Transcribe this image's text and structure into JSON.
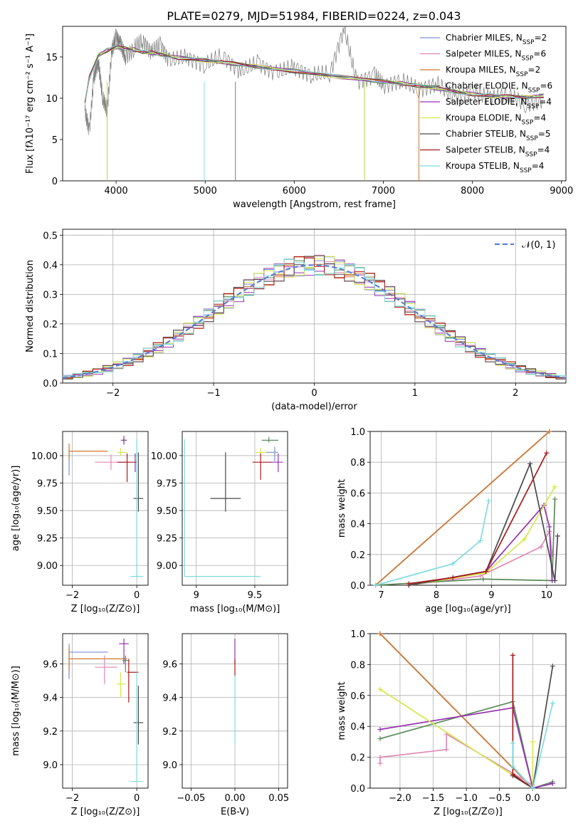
{
  "figure_title": "PLATE=0279, MJD=51984, FIBERID=0224, z=0.043",
  "series_colors": {
    "chabrier_miles": "#7b8fd6",
    "salpeter_miles": "#e089b4",
    "kroupa_miles": "#d2772b",
    "chabrier_elodie": "#5a8a5a",
    "salpeter_elodie": "#9632b0",
    "kroupa_elodie": "#d4e84a",
    "chabrier_stelib": "#4a4a4a",
    "salpeter_stelib": "#a81a1a",
    "kroupa_stelib": "#7fdbe0"
  },
  "chart_data": [
    {
      "id": "spectrum",
      "type": "line",
      "xlabel": "wavelength [Angstrom, rest frame]",
      "ylabel": "Flux [fλ10⁻¹⁷ erg cm⁻² s⁻¹ A⁻¹]",
      "xlim": [
        3400,
        9050
      ],
      "ylim": [
        0,
        18.7
      ],
      "xticks": [
        4000,
        5000,
        6000,
        7000,
        8000,
        9000
      ],
      "yticks": [
        0,
        5,
        10,
        15
      ],
      "legend_loc": "upper right",
      "legend": [
        "Chabrier MILES, N_SSP=2",
        "Salpeter MILES, N_SSP=6",
        "Kroupa MILES, N_SSP=2",
        "Chabrier ELODIE, N_SSP=6",
        "Salpeter ELODIE, N_SSP=4",
        "Kroupa ELODIE, N_SSP=4",
        "Chabrier STELIB, N_SSP=5",
        "Salpeter STELIB, N_SSP=4",
        "Kroupa STELIB, N_SSP=4"
      ],
      "model_curve": {
        "x": [
          3650,
          3700,
          3800,
          3900,
          4000,
          4100,
          4200,
          4300,
          4400,
          4500,
          4700,
          5000,
          5300,
          5600,
          6000,
          6500,
          7000,
          7200,
          7400,
          7600,
          7800,
          8000,
          8200,
          8400,
          8600,
          8800
        ],
        "y": [
          9.5,
          12.5,
          15.2,
          15.8,
          16.2,
          16.0,
          15.9,
          15.6,
          15.5,
          15.3,
          14.9,
          14.6,
          14.2,
          13.8,
          13.3,
          12.6,
          12.0,
          11.8,
          11.5,
          11.2,
          10.8,
          10.5,
          10.3,
          10.2,
          10.1,
          10.3
        ]
      },
      "data_curve_gray": {
        "x": [
          3650,
          3700,
          3750,
          3800,
          3850,
          3900,
          3950,
          4000,
          4050,
          4100,
          4200,
          4300,
          4400,
          4500,
          4600,
          4800,
          5000,
          5200,
          5400,
          5600,
          5800,
          6000,
          6200,
          6400,
          6560,
          6700,
          6900,
          7000,
          7200,
          7400,
          7600,
          7800,
          8000,
          8200,
          8400,
          8600,
          8800
        ],
        "y": [
          8.5,
          6.0,
          12.5,
          14.5,
          10.0,
          8.5,
          15.5,
          17.5,
          16.5,
          15.0,
          16.0,
          17.0,
          15.5,
          16.5,
          14.5,
          15.0,
          14.0,
          15.2,
          13.2,
          14.3,
          13.0,
          13.8,
          12.8,
          13.0,
          18.5,
          12.0,
          12.8,
          11.5,
          12.2,
          11.0,
          11.8,
          10.0,
          10.8,
          10.0,
          10.5,
          9.2,
          9.8
        ]
      },
      "drop_lines": [
        3900,
        4990,
        5340,
        6790,
        7400
      ]
    },
    {
      "id": "residuals",
      "type": "histogram",
      "xlabel": "(data-model)/error",
      "ylabel": "Normed distribution",
      "xlim": [
        -2.5,
        2.5
      ],
      "ylim": [
        0,
        0.52
      ],
      "xticks": [
        -2,
        -1,
        0,
        1,
        2
      ],
      "yticks": [
        0.0,
        0.1,
        0.2,
        0.3,
        0.4,
        0.5
      ],
      "legend": [
        "𝒩(0, 1)"
      ],
      "legend_loc": "upper right",
      "bin_width": 0.1,
      "reference_gaussian": {
        "mean": 0,
        "sigma": 1
      }
    },
    {
      "id": "age_vs_z",
      "type": "scatter",
      "xlabel": "Z [log₁₀(Z/Z⊙)]",
      "ylabel": "age  [log₁₀(age/yr)]",
      "xlim": [
        -2.3,
        0.35
      ],
      "ylim": [
        8.82,
        10.22
      ],
      "xticks": [
        -2,
        0
      ],
      "yticks": [
        9.0,
        9.25,
        9.5,
        9.75,
        10.0
      ],
      "points": [
        {
          "s": "chabrier_miles",
          "x": -2.1,
          "y": 9.94,
          "xlo": -2.1,
          "xhi": -2.1,
          "ylo": 9.82,
          "yhi": 10.06
        },
        {
          "s": "kroupa_miles",
          "x": -2.1,
          "y": 10.04,
          "xlo": -2.1,
          "xhi": -0.9,
          "ylo": 9.97,
          "yhi": 10.11
        },
        {
          "s": "salpeter_miles",
          "x": -0.8,
          "y": 9.94,
          "xlo": -1.3,
          "xhi": -0.3,
          "ylo": 9.87,
          "yhi": 10.01
        },
        {
          "s": "kroupa_elodie",
          "x": -0.5,
          "y": 10.03,
          "xlo": -0.6,
          "xhi": -0.3,
          "ylo": 10.0,
          "yhi": 10.07
        },
        {
          "s": "chabrier_elodie",
          "x": -0.4,
          "y": 10.14,
          "xlo": -0.5,
          "xhi": -0.3,
          "ylo": 10.12,
          "yhi": 10.17
        },
        {
          "s": "salpeter_elodie",
          "x": -0.4,
          "y": 10.14,
          "xlo": -0.45,
          "xhi": -0.35,
          "ylo": 10.1,
          "yhi": 10.18
        },
        {
          "s": "salpeter_stelib",
          "x": -0.3,
          "y": 9.94,
          "xlo": -0.6,
          "xhi": -0.0,
          "ylo": 9.76,
          "yhi": 10.02
        },
        {
          "s": "salpeter_elodie",
          "x": -0.05,
          "y": 9.94,
          "xlo": -0.05,
          "xhi": -0.05,
          "ylo": 9.85,
          "yhi": 10.02
        },
        {
          "s": "chabrier_stelib",
          "x": 0.05,
          "y": 9.61,
          "xlo": -0.1,
          "xhi": 0.2,
          "ylo": 9.49,
          "yhi": 10.03
        },
        {
          "s": "kroupa_stelib",
          "x": 0.0,
          "y": 8.9,
          "xlo": -0.2,
          "xhi": 0.2,
          "ylo": 8.9,
          "yhi": 10.15
        }
      ]
    },
    {
      "id": "age_vs_mass",
      "type": "scatter",
      "xlabel": "mass [log₁₀(M/M⊙)]",
      "ylabel": "",
      "xlim": [
        8.88,
        9.78
      ],
      "ylim": [
        8.82,
        10.22
      ],
      "xticks": [
        9.0,
        9.5
      ],
      "yticks": [
        9.0,
        9.25,
        9.5,
        9.75,
        10.0
      ],
      "points": [
        {
          "s": "kroupa_stelib",
          "x": 8.9,
          "y": 8.9,
          "xlo": 8.9,
          "xhi": 9.55,
          "ylo": 8.9,
          "yhi": 10.15
        },
        {
          "s": "chabrier_stelib",
          "x": 9.25,
          "y": 9.61,
          "xlo": 9.12,
          "xhi": 9.38,
          "ylo": 9.49,
          "yhi": 10.03
        },
        {
          "s": "kroupa_elodie",
          "x": 9.55,
          "y": 10.03,
          "xlo": 9.5,
          "xhi": 9.62,
          "ylo": 10.0,
          "yhi": 10.07
        },
        {
          "s": "salpeter_stelib",
          "x": 9.55,
          "y": 9.94,
          "xlo": 9.48,
          "xhi": 9.64,
          "ylo": 9.78,
          "yhi": 10.02
        },
        {
          "s": "chabrier_elodie",
          "x": 9.62,
          "y": 10.14,
          "xlo": 9.56,
          "xhi": 9.7,
          "ylo": 10.12,
          "yhi": 10.17
        },
        {
          "s": "salpeter_elodie",
          "x": 9.7,
          "y": 9.94,
          "xlo": 9.62,
          "xhi": 9.74,
          "ylo": 9.85,
          "yhi": 10.02
        },
        {
          "s": "chabrier_miles",
          "x": 9.67,
          "y": 10.03,
          "xlo": 9.6,
          "xhi": 9.7,
          "ylo": 9.95,
          "yhi": 10.08
        }
      ]
    },
    {
      "id": "massweight_vs_age",
      "type": "line",
      "xlabel": "age  [log₁₀(age/yr)]",
      "ylabel": "mass weight",
      "xlim": [
        6.8,
        10.35
      ],
      "ylim": [
        0,
        1
      ],
      "xticks": [
        7,
        8,
        9,
        10
      ],
      "yticks": [
        0.0,
        0.2,
        0.4,
        0.6,
        0.8,
        1.0
      ],
      "lines": [
        {
          "s": "chabrier_miles",
          "x": [
            6.9,
            10.05
          ],
          "y": [
            0.0,
            1.0
          ]
        },
        {
          "s": "kroupa_miles",
          "x": [
            6.9,
            10.05
          ],
          "y": [
            0.0,
            1.0
          ]
        },
        {
          "s": "salpeter_miles",
          "x": [
            7.5,
            8.8,
            9.9,
            10.05,
            10.1
          ],
          "y": [
            0.0,
            0.06,
            0.25,
            0.35,
            0.2
          ]
        },
        {
          "s": "chabrier_elodie",
          "x": [
            6.9,
            8.85,
            10.1,
            10.15
          ],
          "y": [
            0.0,
            0.04,
            0.03,
            0.56
          ]
        },
        {
          "s": "salpeter_elodie",
          "x": [
            7.5,
            8.9,
            9.95,
            10.05,
            10.1
          ],
          "y": [
            0.0,
            0.09,
            0.52,
            0.38,
            0.03
          ]
        },
        {
          "s": "kroupa_elodie",
          "x": [
            7.5,
            8.9,
            9.6,
            10.15
          ],
          "y": [
            0.0,
            0.08,
            0.3,
            0.64
          ]
        },
        {
          "s": "chabrier_stelib",
          "x": [
            7.5,
            8.9,
            9.7,
            10.15,
            10.2
          ],
          "y": [
            0.0,
            0.09,
            0.79,
            0.03,
            0.32
          ]
        },
        {
          "s": "salpeter_stelib",
          "x": [
            7.5,
            8.3,
            8.9,
            10.0
          ],
          "y": [
            0.01,
            0.05,
            0.09,
            0.86
          ]
        },
        {
          "s": "kroupa_stelib",
          "x": [
            6.9,
            8.3,
            8.8,
            8.95
          ],
          "y": [
            0.0,
            0.14,
            0.29,
            0.55
          ]
        }
      ]
    },
    {
      "id": "mass_vs_z",
      "type": "scatter",
      "xlabel": "Z [log₁₀(Z/Z⊙)]",
      "ylabel": "mass [log₁₀(M/M⊙)]",
      "xlim": [
        -2.3,
        0.35
      ],
      "ylim": [
        8.86,
        9.78
      ],
      "xticks": [
        -2,
        0
      ],
      "yticks": [
        9.0,
        9.2,
        9.4,
        9.6
      ],
      "points": [
        {
          "s": "chabrier_miles",
          "x": -2.1,
          "y": 9.67,
          "xlo": -2.1,
          "xhi": -0.9,
          "ylo": 9.51,
          "yhi": 9.72
        },
        {
          "s": "kroupa_miles",
          "x": -2.1,
          "y": 9.63,
          "xlo": -2.1,
          "xhi": -0.3,
          "ylo": 9.56,
          "yhi": 9.7
        },
        {
          "s": "salpeter_miles",
          "x": -1.0,
          "y": 9.58,
          "xlo": -1.3,
          "xhi": -0.6,
          "ylo": 9.48,
          "yhi": 9.65
        },
        {
          "s": "salpeter_elodie",
          "x": -0.4,
          "y": 9.72,
          "xlo": -0.55,
          "xhi": -0.25,
          "ylo": 9.6,
          "yhi": 9.75
        },
        {
          "s": "chabrier_elodie",
          "x": -0.35,
          "y": 9.62,
          "xlo": -0.45,
          "xhi": -0.25,
          "ylo": 9.55,
          "yhi": 9.65
        },
        {
          "s": "kroupa_elodie",
          "x": -0.5,
          "y": 9.48,
          "xlo": -0.6,
          "xhi": -0.35,
          "ylo": 9.4,
          "yhi": 9.55
        },
        {
          "s": "salpeter_stelib",
          "x": -0.25,
          "y": 9.55,
          "xlo": -0.3,
          "xhi": 0.05,
          "ylo": 9.37,
          "yhi": 9.63
        },
        {
          "s": "chabrier_stelib",
          "x": 0.05,
          "y": 9.25,
          "xlo": -0.1,
          "xhi": 0.2,
          "ylo": 9.12,
          "yhi": 9.47
        },
        {
          "s": "kroupa_stelib",
          "x": 0.0,
          "y": 8.9,
          "xlo": -0.2,
          "xhi": 0.2,
          "ylo": 8.9,
          "yhi": 9.55
        }
      ]
    },
    {
      "id": "mass_vs_ebv",
      "type": "scatter",
      "xlabel": "E(B-V)",
      "ylabel": "",
      "xlim": [
        -0.06,
        0.06
      ],
      "ylim": [
        8.86,
        9.78
      ],
      "xticks": [
        -0.05,
        0.0,
        0.05
      ],
      "xtick_labels": [
        "−0.05",
        "0.00",
        "0.05"
      ],
      "yticks": [
        9.0,
        9.2,
        9.4,
        9.6
      ],
      "points": [
        {
          "s": "salpeter_elodie",
          "x": 0.0,
          "y": 9.72,
          "ylo": 9.6,
          "yhi": 9.75
        },
        {
          "s": "salpeter_stelib",
          "x": 0.0,
          "y": 9.55,
          "ylo": 9.53,
          "yhi": 9.63
        },
        {
          "s": "kroupa_stelib",
          "x": 0.0,
          "y": 9.2,
          "ylo": 9.12,
          "yhi": 9.53
        }
      ]
    },
    {
      "id": "massweight_vs_z",
      "type": "line",
      "xlabel": "Z [log₁₀(Z/Z⊙)]",
      "ylabel": "mass weight",
      "xlim": [
        -2.45,
        0.5
      ],
      "ylim": [
        0,
        1
      ],
      "xticks": [
        -2.0,
        -1.5,
        -1.0,
        -0.5,
        0.0
      ],
      "xtick_labels": [
        "−2.0",
        "−1.5",
        "−1.0",
        "−0.5",
        "0.0"
      ],
      "yticks": [
        0.0,
        0.2,
        0.4,
        0.6,
        0.8,
        1.0
      ],
      "lines": [
        {
          "s": "chabrier_miles",
          "x": [
            -2.3,
            0.0
          ],
          "y": [
            1.0,
            0.0
          ]
        },
        {
          "s": "kroupa_miles",
          "x": [
            -2.3,
            0.0
          ],
          "y": [
            1.0,
            0.0
          ]
        },
        {
          "s": "salpeter_miles",
          "x": [
            -2.3,
            -2.3,
            -1.3,
            -1.3,
            0.0
          ],
          "y": [
            0.16,
            0.2,
            0.25,
            0.35,
            0.02
          ]
        },
        {
          "s": "chabrier_elodie",
          "x": [
            -2.3,
            -0.3,
            0.0,
            0.3
          ],
          "y": [
            0.32,
            0.56,
            0.0,
            0.04
          ]
        },
        {
          "s": "salpeter_elodie",
          "x": [
            -2.3,
            -0.3,
            0.0,
            0.3
          ],
          "y": [
            0.38,
            0.52,
            0.0,
            0.03
          ]
        },
        {
          "s": "kroupa_elodie",
          "x": [
            -2.3,
            0.0,
            0.0
          ],
          "y": [
            0.64,
            0.0,
            0.3
          ]
        },
        {
          "s": "chabrier_stelib",
          "x": [
            -0.3,
            0.0,
            0.3
          ],
          "y": [
            0.08,
            0.0,
            0.79
          ]
        },
        {
          "s": "salpeter_stelib",
          "x": [
            -0.3,
            -0.3,
            0.0
          ],
          "y": [
            0.86,
            0.09,
            0.0
          ]
        },
        {
          "s": "kroupa_stelib",
          "x": [
            -0.3,
            -0.3,
            0.0,
            0.3
          ],
          "y": [
            0.29,
            0.14,
            0.0,
            0.55
          ]
        }
      ]
    }
  ]
}
